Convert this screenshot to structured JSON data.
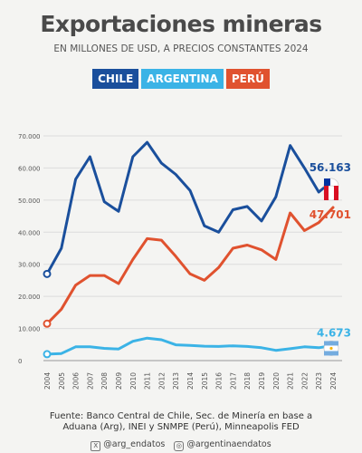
{
  "header": {
    "title": "Exportaciones mineras",
    "subtitle": "EN MILLONES DE USD, A PRECIOS CONSTANTES 2024"
  },
  "legend": [
    {
      "label": "CHILE",
      "color": "#1a4f9c"
    },
    {
      "label": "ARGENTINA",
      "color": "#3bb3e6"
    },
    {
      "label": "PERÚ",
      "color": "#e0522f"
    }
  ],
  "chart_data": {
    "type": "line",
    "x": [
      "2004",
      "2005",
      "2006",
      "2007",
      "2008",
      "2009",
      "2010",
      "2011",
      "2012",
      "2013",
      "2014",
      "2015",
      "2016",
      "2017",
      "2018",
      "2019",
      "2020",
      "2021",
      "2022",
      "2023",
      "2024"
    ],
    "ylim": [
      0,
      70000
    ],
    "yticks": [
      "0",
      "10.000",
      "20.000",
      "30.000",
      "40.000",
      "50.000",
      "60.000",
      "70.000"
    ],
    "grid": true,
    "series": [
      {
        "name": "CHILE",
        "color": "#1a4f9c",
        "values": [
          27000,
          35000,
          56500,
          63500,
          49500,
          46500,
          63500,
          68000,
          61500,
          58000,
          53000,
          42000,
          40000,
          47000,
          48000,
          43500,
          51000,
          67000,
          60000,
          52500,
          56163
        ],
        "end_label": "56.163"
      },
      {
        "name": "PERÚ",
        "color": "#e0522f",
        "values": [
          11500,
          16000,
          23500,
          26500,
          26500,
          24000,
          31500,
          38000,
          37500,
          32500,
          27000,
          25000,
          29000,
          35000,
          36000,
          34500,
          31500,
          46000,
          40500,
          43000,
          47701
        ],
        "end_label": "47.701"
      },
      {
        "name": "ARGENTINA",
        "color": "#3bb3e6",
        "values": [
          2000,
          2200,
          4300,
          4300,
          3800,
          3600,
          6000,
          7000,
          6500,
          4900,
          4700,
          4500,
          4400,
          4600,
          4400,
          4000,
          3200,
          3700,
          4300,
          4000,
          4673
        ],
        "end_label": "4.673"
      }
    ]
  },
  "footer": {
    "line1": "Fuente: Banco Central de Chile, Sec. de Minería en base a",
    "line2": "Aduana (Arg), INEI y SNMPE (Perú), Minneapolis FED"
  },
  "social": {
    "x_handle": "@arg_endatos",
    "ig_handle": "@argentinaendatos"
  }
}
